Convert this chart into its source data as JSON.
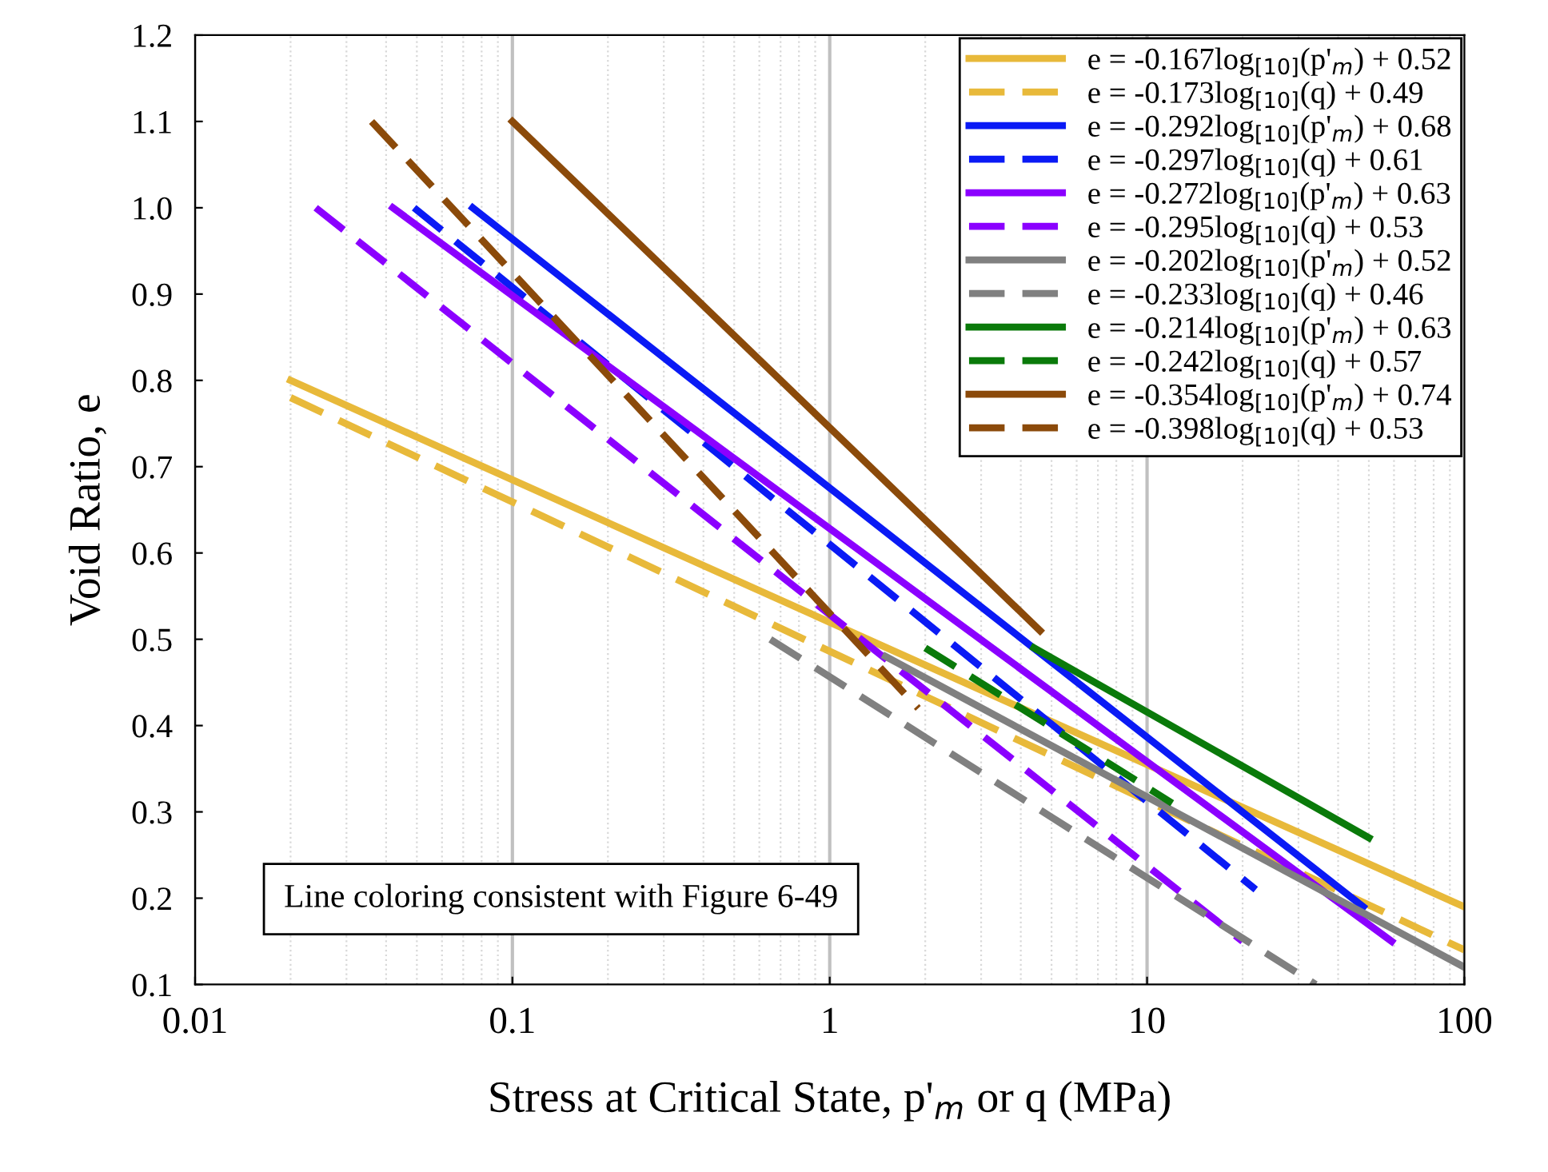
{
  "chart_data": {
    "type": "line",
    "xlabel": "Stress at Critical State, p'$_{m}$ or q (MPa)",
    "ylabel": "Void Ratio, e",
    "log": "x",
    "xlim": [
      0.01,
      100
    ],
    "ylim": [
      0.1,
      1.2
    ],
    "xticks": [
      0.01,
      0.1,
      1,
      10,
      100
    ],
    "yticks": [
      0.1,
      0.2,
      0.3,
      0.4,
      0.5,
      0.6,
      0.7,
      0.8,
      0.9,
      {
        "value": 1,
        "label": "1.0"
      },
      1.1,
      1.2
    ],
    "grid": "x",
    "legend": "top right",
    "marker": "none",
    "annotations": [
      "Line coloring consistent with Figure 6-49"
    ],
    "series": [
      {
        "name": "e = -0.167log$_{[10]}$(p'$_{m}$) + 0.52",
        "color": "#e8b93a",
        "line_style": "solid",
        "x": [
          0.02,
          100
        ],
        "values": [
          0.8,
          0.19
        ]
      },
      {
        "name": "e = -0.173log$_{[10]}$(q) + 0.49",
        "color": "#e8b93a",
        "line_style": "dashed",
        "x": [
          0.02,
          100
        ],
        "values": [
          0.78,
          0.14
        ]
      },
      {
        "name": "e = -0.292log$_{[10]}$(p'$_{m}$) + 0.68",
        "color": "#0a1af5",
        "line_style": "solid",
        "x": [
          0.075,
          48
        ],
        "values": [
          1.0,
          0.19
        ]
      },
      {
        "name": "e = -0.297log$_{[10]}$(q) + 0.61",
        "color": "#0a1af5",
        "line_style": "dashed",
        "x": [
          0.049,
          22
        ],
        "values": [
          1.0,
          0.21
        ]
      },
      {
        "name": "e = -0.272log$_{[10]}$(p'$_{m}$) + 0.63",
        "color": "#8b00ff",
        "line_style": "solid",
        "x": [
          0.042,
          59
        ],
        "values": [
          1.0,
          0.15
        ]
      },
      {
        "name": "e = -0.295log$_{[10]}$(q) + 0.53",
        "color": "#8b00ff",
        "line_style": "dashed",
        "x": [
          0.024,
          20
        ],
        "values": [
          1.0,
          0.15
        ]
      },
      {
        "name": "e = -0.202log$_{[10]}$(p'$_{m}$) + 0.52",
        "color": "#808080",
        "line_style": "solid",
        "x": [
          1.5,
          100
        ],
        "values": [
          0.48,
          0.12
        ]
      },
      {
        "name": "e = -0.233log$_{[10]}$(q) + 0.46",
        "color": "#808080",
        "line_style": "dashed",
        "x": [
          0.65,
          34
        ],
        "values": [
          0.5,
          0.1
        ]
      },
      {
        "name": "e = -0.214log$_{[10]}$(p'$_{m}$) + 0.63",
        "color": "#0a7a0a",
        "line_style": "solid",
        "x": [
          4.4,
          50
        ],
        "values": [
          0.49,
          0.27
        ]
      },
      {
        "name": "e = -0.242log$_{[10]}$(q) + 0.57",
        "color": "#0a7a0a",
        "line_style": "dashed",
        "x": [
          2.0,
          12
        ],
        "values": [
          0.49,
          0.31
        ]
      },
      {
        "name": "e = -0.354log$_{[10]}$(p'$_{m}$) + 0.74",
        "color": "#8b4a0a",
        "line_style": "solid",
        "x": [
          0.1,
          4.6
        ],
        "values": [
          1.1,
          0.51
        ]
      },
      {
        "name": "e = -0.398log$_{[10]}$(q) + 0.53",
        "color": "#8b4a0a",
        "line_style": "dashed",
        "x": [
          0.036,
          1.9
        ],
        "values": [
          1.1,
          0.42
        ]
      }
    ]
  }
}
